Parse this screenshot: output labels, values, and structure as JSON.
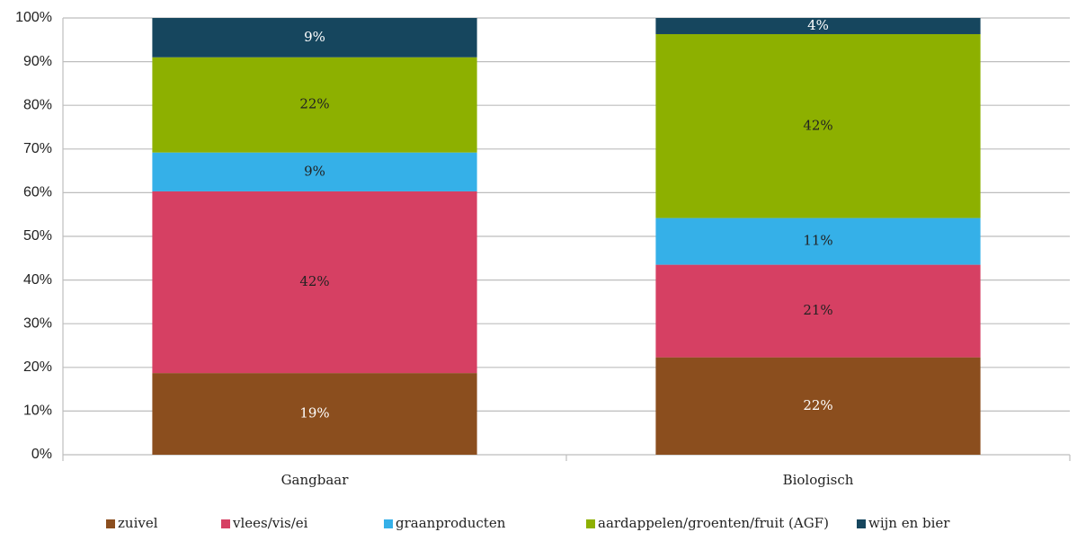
{
  "chart_data": {
    "type": "stacked_bar",
    "categories": [
      "Gangbaar",
      "Biologisch"
    ],
    "series": [
      {
        "name": "zuivel",
        "color": "#8b4e1e",
        "label_color": "#ffffff",
        "values": [
          18.7,
          22.3
        ],
        "value_labels": [
          "19%",
          "22%"
        ]
      },
      {
        "name": "vlees/vis/ei",
        "color": "#d64063",
        "label_color": "#222222",
        "values": [
          41.6,
          21.2
        ],
        "value_labels": [
          "42%",
          "21%"
        ]
      },
      {
        "name": "graanproducten",
        "color": "#35b0e8",
        "label_color": "#222222",
        "values": [
          8.9,
          10.7
        ],
        "value_labels": [
          "9%",
          "11%"
        ]
      },
      {
        "name": "aardappelen/groenten/fruit (AGF)",
        "color": "#8db000",
        "label_color": "#222222",
        "values": [
          21.8,
          42.1
        ],
        "value_labels": [
          "22%",
          "42%"
        ]
      },
      {
        "name": "wijn en bier",
        "color": "#16465e",
        "label_color": "#ffffff",
        "values": [
          9.0,
          3.7
        ],
        "value_labels": [
          "9%",
          "4%"
        ]
      }
    ],
    "ylim": [
      0,
      100
    ],
    "yticks": [
      {
        "value": 0,
        "label": "0%"
      },
      {
        "value": 10,
        "label": "10%"
      },
      {
        "value": 20,
        "label": "20%"
      },
      {
        "value": 30,
        "label": "30%"
      },
      {
        "value": 40,
        "label": "40%"
      },
      {
        "value": 50,
        "label": "50%"
      },
      {
        "value": 60,
        "label": "60%"
      },
      {
        "value": 70,
        "label": "70%"
      },
      {
        "value": 80,
        "label": "80%"
      },
      {
        "value": 90,
        "label": "90%"
      },
      {
        "value": 100,
        "label": "100%"
      }
    ],
    "grid": true,
    "legend": "bottom"
  }
}
